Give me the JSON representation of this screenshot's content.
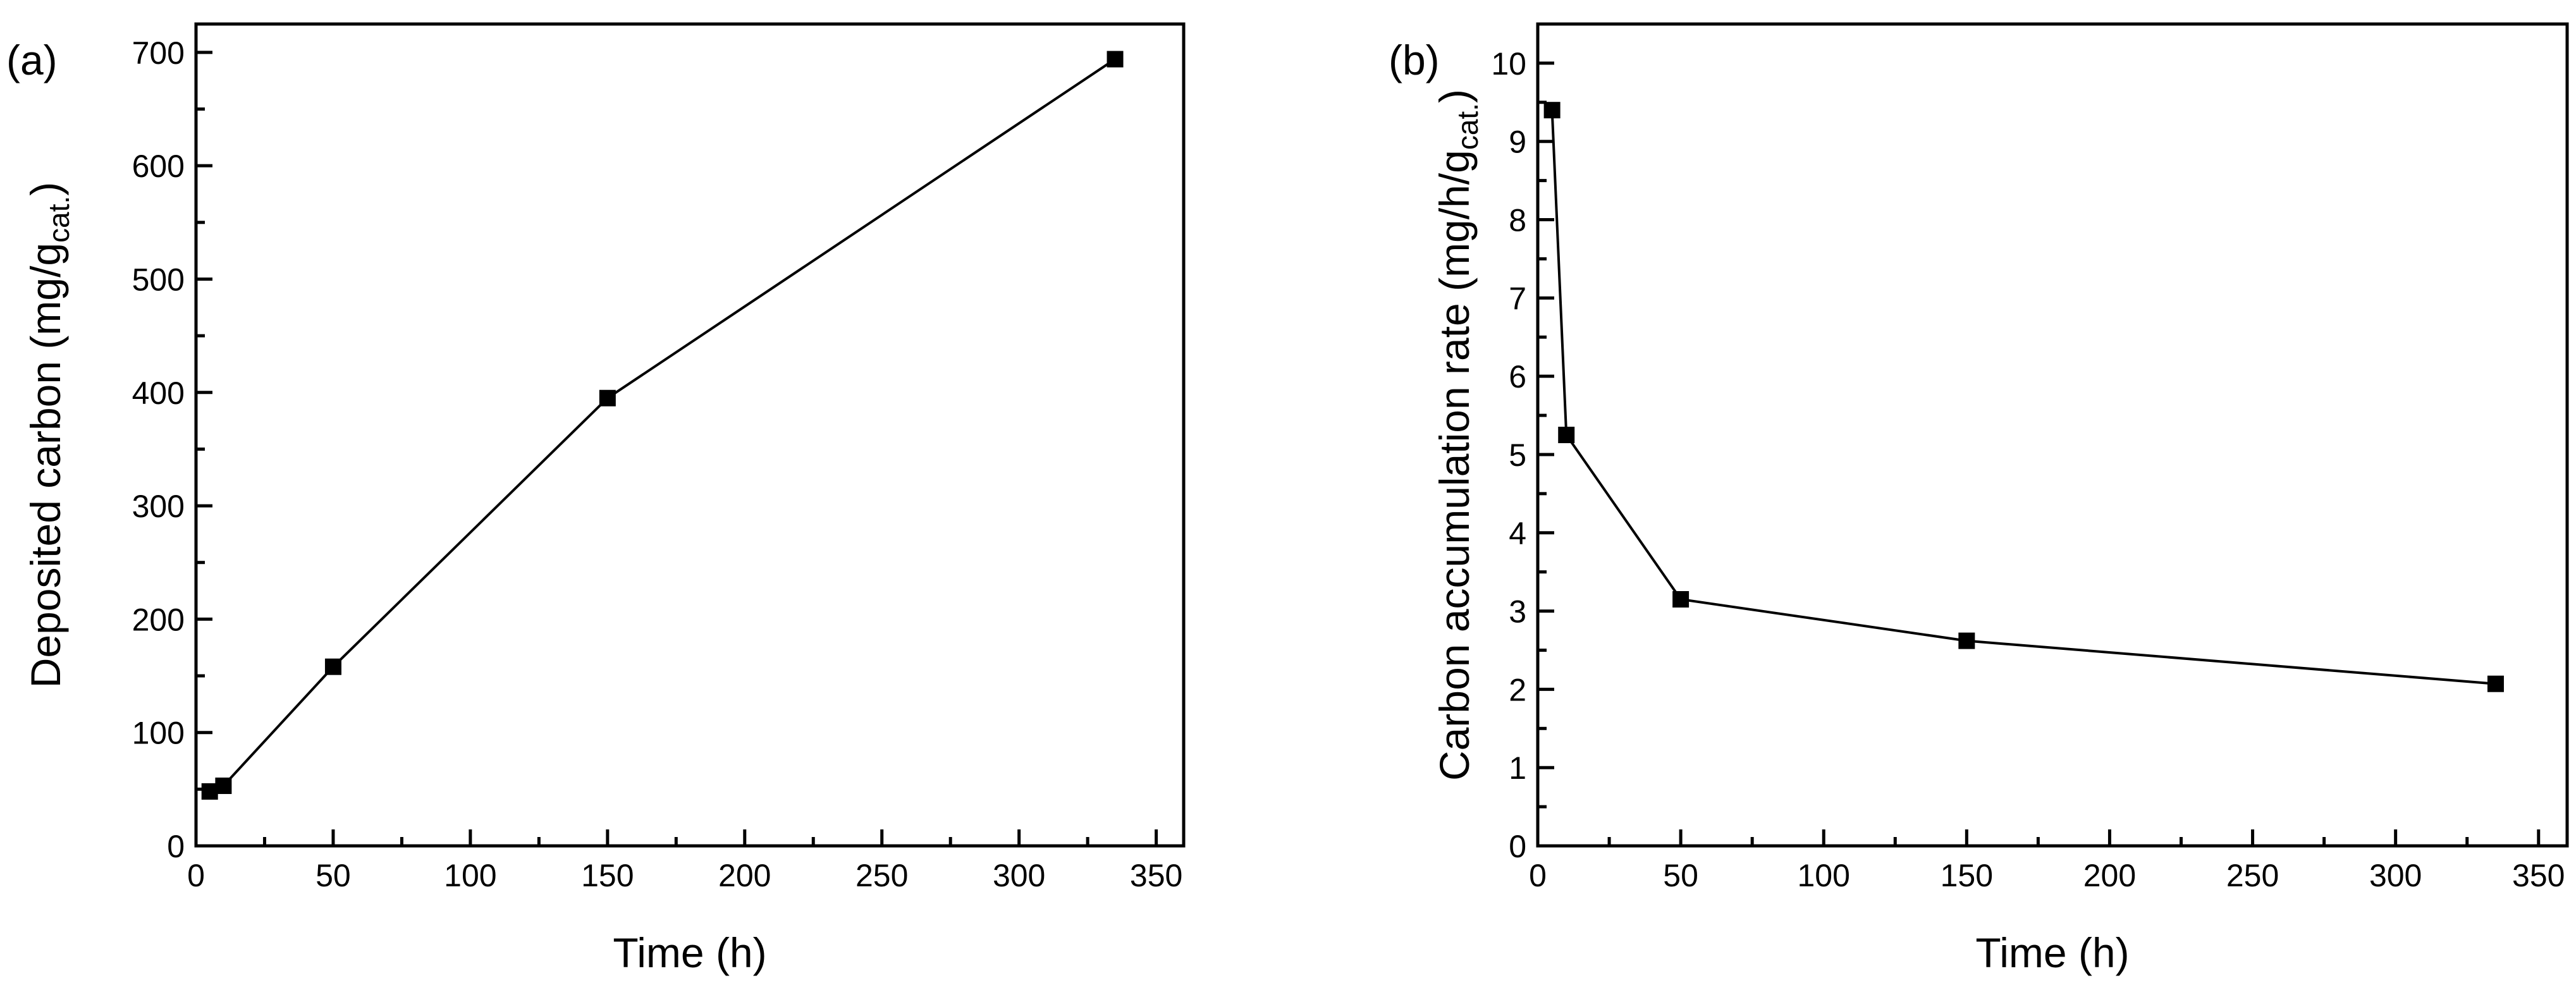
{
  "chart_data": [
    {
      "type": "line",
      "panel_label": "(a)",
      "title": "",
      "xlabel": "Time (h)",
      "ylabel": "Deposited carbon (mg/g",
      "ylabel_sub": "cat.",
      "ylabel_end": ")",
      "xlim": [
        0,
        360
      ],
      "ylim": [
        0,
        725
      ],
      "xticks": [
        0,
        50,
        100,
        150,
        200,
        250,
        300,
        350
      ],
      "yticks": [
        0,
        100,
        200,
        300,
        400,
        500,
        600,
        700
      ],
      "grid": false,
      "series": [
        {
          "name": "Deposited carbon",
          "x": [
            5,
            10,
            50,
            150,
            335
          ],
          "y": [
            48,
            53,
            158,
            395,
            694
          ]
        }
      ]
    },
    {
      "type": "line",
      "panel_label": "(b)",
      "title": "",
      "xlabel": "Time (h)",
      "ylabel": "Carbon accumulation rate (mg/h/g",
      "ylabel_sub": "cat.",
      "ylabel_end": ")",
      "xlim": [
        0,
        360
      ],
      "ylim": [
        0,
        10.5
      ],
      "xticks": [
        0,
        50,
        100,
        150,
        200,
        250,
        300,
        350
      ],
      "yticks": [
        0,
        1,
        2,
        3,
        4,
        5,
        6,
        7,
        8,
        9,
        10
      ],
      "grid": false,
      "series": [
        {
          "name": "Carbon accumulation rate",
          "x": [
            5,
            10,
            50,
            150,
            335
          ],
          "y": [
            9.4,
            5.25,
            3.15,
            2.62,
            2.07
          ]
        }
      ]
    }
  ]
}
